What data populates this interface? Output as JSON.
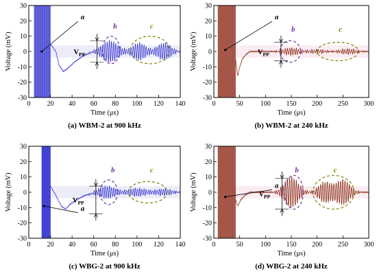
{
  "chart_data": [
    {
      "type": "line",
      "caption": "(a) WBM-2 at 900 kHz",
      "xlabel": "Time (μs)",
      "ylabel": "Voltage (mV)",
      "xlim": [
        0,
        140
      ],
      "ylim": [
        -30,
        30
      ],
      "xticks": [
        0,
        20,
        40,
        60,
        80,
        100,
        120,
        140
      ],
      "yticks": [
        -30,
        -20,
        -10,
        0,
        10,
        20,
        30
      ],
      "series_color": "#3c3cd2",
      "highlight_color": "#dcdcf5",
      "burst_range": [
        5,
        20
      ],
      "wave_path": [
        [
          20,
          5
        ],
        [
          25,
          0
        ],
        [
          28,
          -9
        ],
        [
          32,
          -13
        ],
        [
          36,
          -11
        ],
        [
          42,
          -7
        ],
        [
          50,
          -3
        ],
        [
          56,
          -1
        ],
        [
          60,
          0
        ],
        [
          140,
          0
        ]
      ],
      "packets": [
        {
          "center": 75,
          "width": 12,
          "amplitude": 7
        },
        {
          "center": 102,
          "width": 10,
          "amplitude": 5.5
        },
        {
          "center": 125,
          "width": 10,
          "amplitude": 5.5
        }
      ],
      "annotations": [
        {
          "text": "a",
          "x": 12,
          "y": 0,
          "tx": 48,
          "ty": 21,
          "color": "#000000"
        },
        {
          "text": "b",
          "x": 76,
          "y": 1,
          "tx": 78,
          "ty": 15,
          "ellipse_rx": 8,
          "ellipse_ry": 9,
          "color": "#7030a0"
        },
        {
          "text": "c",
          "x": 112,
          "y": 1,
          "tx": 112,
          "ty": 15,
          "ellipse_rx": 18,
          "ellipse_ry": 9,
          "color": "#808000"
        }
      ],
      "vpp": {
        "label": "V",
        "sub": "PP",
        "x": 63,
        "y_top": 7,
        "y_bot": -7
      }
    },
    {
      "type": "line",
      "caption": "(b) WBM-2 at 240 kHz",
      "xlabel": "Time (μs)",
      "ylabel": "Voltage (mV)",
      "xlim": [
        0,
        300
      ],
      "ylim": [
        -30,
        30
      ],
      "xticks": [
        0,
        50,
        100,
        150,
        200,
        250,
        300
      ],
      "yticks": [
        -30,
        -20,
        -10,
        0,
        10,
        20,
        30
      ],
      "series_color": "#8b2d18",
      "highlight_color": "#f8d9e6",
      "burst_range": [
        8,
        42
      ],
      "wave_path": [
        [
          42,
          -5
        ],
        [
          46,
          -16
        ],
        [
          50,
          -10
        ],
        [
          55,
          -5
        ],
        [
          62,
          -2
        ],
        [
          70,
          0
        ],
        [
          300,
          0
        ]
      ],
      "packets": [
        {
          "center": 150,
          "width": 25,
          "amplitude": 2.2
        },
        {
          "center": 200,
          "width": 22,
          "amplitude": 1.2
        },
        {
          "center": 260,
          "width": 25,
          "amplitude": 1.6
        }
      ],
      "annotations": [
        {
          "text": "a",
          "x": 22,
          "y": 1,
          "tx": 118,
          "ty": 21,
          "color": "#000000"
        },
        {
          "text": "b",
          "x": 148,
          "y": 0,
          "tx": 150,
          "ty": 13,
          "ellipse_rx": 20,
          "ellipse_ry": 7,
          "color": "#7030a0"
        },
        {
          "text": "c",
          "x": 240,
          "y": 0,
          "tx": 242,
          "ty": 13,
          "ellipse_rx": 40,
          "ellipse_ry": 6,
          "color": "#808000"
        }
      ],
      "vpp": {
        "label": "V",
        "sub": "PP",
        "x": 130,
        "y_top": 6,
        "y_bot": -6
      }
    },
    {
      "type": "line",
      "caption": "(c) WBG-2 at 900 kHz",
      "xlabel": "Time (μs)",
      "ylabel": "Voltage (mV)",
      "xlim": [
        0,
        140
      ],
      "ylim": [
        -30,
        30
      ],
      "xticks": [
        0,
        20,
        40,
        60,
        80,
        100,
        120,
        140
      ],
      "yticks": [
        -30,
        -20,
        -10,
        0,
        10,
        20,
        30
      ],
      "series_color": "#3c3cd2",
      "highlight_color": "#dcdcf5",
      "burst_range": [
        12,
        20
      ],
      "wave_path": [
        [
          20,
          4
        ],
        [
          25,
          -2
        ],
        [
          30,
          -9
        ],
        [
          34,
          -11
        ],
        [
          38,
          -8
        ],
        [
          44,
          -5
        ],
        [
          52,
          -2
        ],
        [
          58,
          -1
        ],
        [
          62,
          0
        ],
        [
          140,
          0
        ]
      ],
      "packets": [
        {
          "center": 72,
          "width": 12,
          "amplitude": 4
        },
        {
          "center": 100,
          "width": 14,
          "amplitude": 2.5
        },
        {
          "center": 125,
          "width": 12,
          "amplitude": 2
        }
      ],
      "annotations": [
        {
          "text": "a",
          "x": 14,
          "y": -9,
          "tx": 48,
          "ty": -12,
          "color": "#000000"
        },
        {
          "text": "b",
          "x": 74,
          "y": 0,
          "tx": 76,
          "ty": 13,
          "ellipse_rx": 8,
          "ellipse_ry": 8,
          "color": "#7030a0"
        },
        {
          "text": "c",
          "x": 110,
          "y": 0,
          "tx": 112,
          "ty": 13,
          "ellipse_rx": 18,
          "ellipse_ry": 7,
          "color": "#808000"
        }
      ],
      "vpp": {
        "label": "V",
        "sub": "PP",
        "x": 62,
        "y_top": 4,
        "y_bot": -14
      }
    },
    {
      "type": "line",
      "caption": "(d) WBG-2 at 240 kHz",
      "xlabel": "Time (μs)",
      "ylabel": "Voltage (mV)",
      "xlim": [
        0,
        300
      ],
      "ylim": [
        -30,
        30
      ],
      "xticks": [
        0,
        50,
        100,
        150,
        200,
        250,
        300
      ],
      "yticks": [
        -30,
        -20,
        -10,
        0,
        10,
        20,
        30
      ],
      "series_color": "#8b2d18",
      "highlight_color": "#f8d9e6",
      "burst_range": [
        8,
        42
      ],
      "wave_path": [
        [
          42,
          -5
        ],
        [
          46,
          -9
        ],
        [
          52,
          -5
        ],
        [
          60,
          -2
        ],
        [
          70,
          0
        ],
        [
          300,
          0
        ]
      ],
      "packets": [
        {
          "center": 150,
          "width": 22,
          "amplitude": 10
        },
        {
          "center": 215,
          "width": 20,
          "amplitude": 6.5
        },
        {
          "center": 250,
          "width": 22,
          "amplitude": 8
        }
      ],
      "annotations": [
        {
          "text": "a",
          "x": 22,
          "y": -3,
          "tx": 118,
          "ty": 3,
          "color": "#000000"
        },
        {
          "text": "b",
          "x": 155,
          "y": 0,
          "tx": 157,
          "ty": 13,
          "ellipse_rx": 18,
          "ellipse_ry": 11,
          "color": "#7030a0"
        },
        {
          "text": "c",
          "x": 232,
          "y": 0,
          "tx": 232,
          "ty": 13,
          "ellipse_rx": 40,
          "ellipse_ry": 11,
          "color": "#808000"
        }
      ],
      "vpp": {
        "label": "V",
        "sub": "PP",
        "x": 132,
        "y_top": 9,
        "y_bot": -11
      }
    }
  ]
}
